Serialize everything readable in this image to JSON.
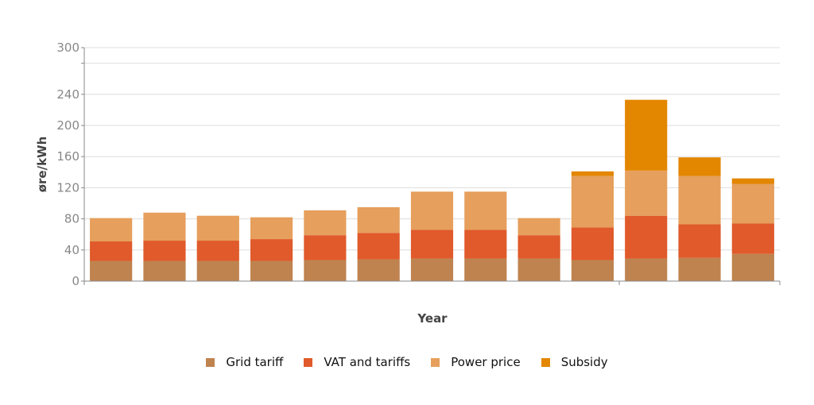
{
  "chart_data": {
    "type": "bar",
    "stacked": true,
    "categories": [
      "",
      "",
      "",
      "",
      "",
      "",
      "",
      "",
      "",
      "",
      "",
      "",
      ""
    ],
    "series": [
      {
        "name": "Grid tariff",
        "color": "#bf834f",
        "values": [
          26,
          26,
          26,
          26,
          27,
          28,
          29,
          29,
          29,
          27,
          29,
          30,
          35
        ]
      },
      {
        "name": "VAT and tariffs",
        "color": "#e05a2b",
        "values": [
          25,
          26,
          26,
          28,
          32,
          34,
          37,
          37,
          30,
          42,
          55,
          43,
          39
        ]
      },
      {
        "name": "Power price",
        "color": "#e69f5c",
        "values": [
          30,
          36,
          32,
          28,
          32,
          33,
          49,
          49,
          22,
          66,
          58,
          62,
          51
        ]
      },
      {
        "name": "Subsidy",
        "color": "#e38600",
        "values": [
          0,
          0,
          0,
          0,
          0,
          0,
          0,
          0,
          0,
          6,
          91,
          24,
          7
        ]
      }
    ],
    "xlabel": "Year",
    "ylabel": "øre/kWh",
    "ylim": [
      0,
      300
    ],
    "yticks": [
      0,
      40,
      80,
      120,
      160,
      200,
      240,
      300
    ],
    "grid": true,
    "legend_position": "bottom"
  }
}
